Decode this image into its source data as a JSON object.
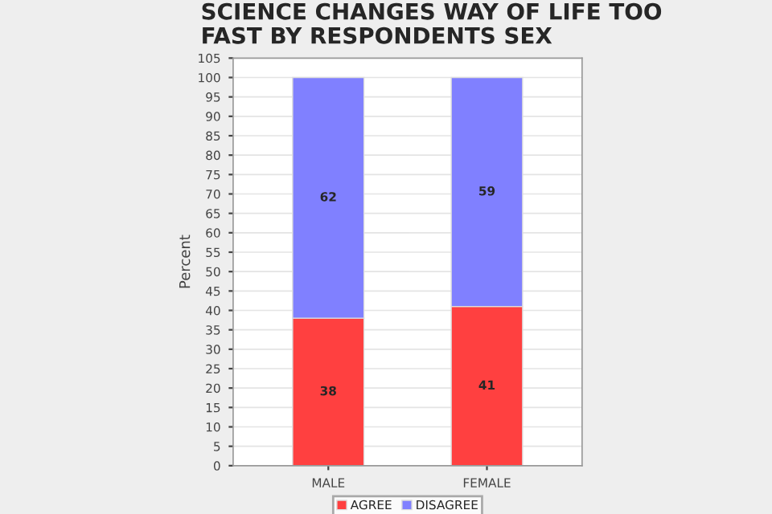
{
  "chart_data": {
    "type": "bar",
    "stacked": true,
    "title": "SCIENCE CHANGES WAY OF LIFE TOO\nFAST BY RESPONDENTS SEX",
    "ylabel": "Percent",
    "categories": [
      "MALE",
      "FEMALE"
    ],
    "series": [
      {
        "name": "AGREE",
        "color": "#ff4040",
        "values": [
          38,
          41
        ]
      },
      {
        "name": "DISAGREE",
        "color": "#8080ff",
        "values": [
          62,
          59
        ]
      }
    ],
    "ylim": [
      0,
      105
    ],
    "yticks": [
      0,
      5,
      10,
      15,
      20,
      25,
      30,
      35,
      40,
      45,
      50,
      55,
      60,
      65,
      70,
      75,
      80,
      85,
      90,
      95,
      100,
      105
    ],
    "grid": "y",
    "legend": "bottom",
    "data_labels": true
  }
}
